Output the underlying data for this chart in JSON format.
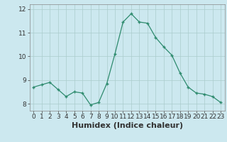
{
  "x": [
    0,
    1,
    2,
    3,
    4,
    5,
    6,
    7,
    8,
    9,
    10,
    11,
    12,
    13,
    14,
    15,
    16,
    17,
    18,
    19,
    20,
    21,
    22,
    23
  ],
  "y": [
    8.7,
    8.8,
    8.9,
    8.6,
    8.3,
    8.5,
    8.45,
    7.95,
    8.05,
    8.85,
    10.1,
    11.45,
    11.8,
    11.45,
    11.4,
    10.8,
    10.4,
    10.05,
    9.3,
    8.7,
    8.45,
    8.4,
    8.3,
    8.05
  ],
  "line_color": "#2e8b6e",
  "marker": "+",
  "bg_color": "#cce8ef",
  "grid_color": "#aacccc",
  "xlabel": "Humidex (Indice chaleur)",
  "xlim": [
    -0.5,
    23.5
  ],
  "ylim": [
    7.7,
    12.2
  ],
  "yticks": [
    8,
    9,
    10,
    11,
    12
  ],
  "xticks": [
    0,
    1,
    2,
    3,
    4,
    5,
    6,
    7,
    8,
    9,
    10,
    11,
    12,
    13,
    14,
    15,
    16,
    17,
    18,
    19,
    20,
    21,
    22,
    23
  ],
  "tick_label_fontsize": 6.5,
  "xlabel_fontsize": 8,
  "tick_color": "#333333",
  "spine_color": "#888888"
}
